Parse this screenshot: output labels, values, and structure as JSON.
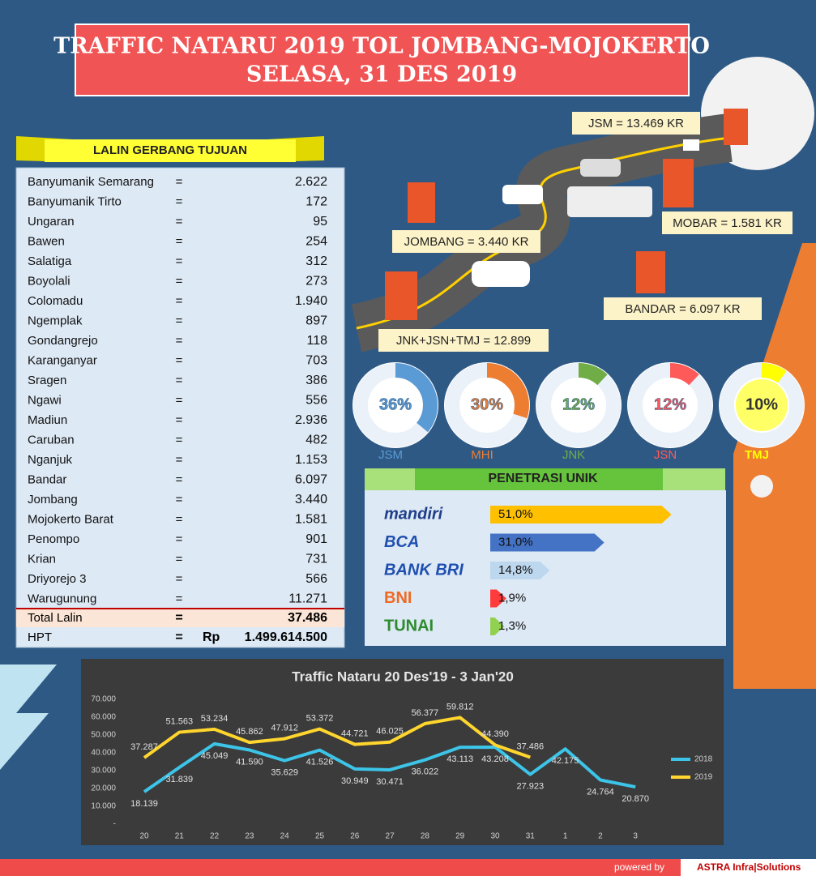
{
  "header": {
    "title_line1": "TRAFFIC NATARU 2019  TOL JOMBANG-MOJOKERTO",
    "title_line2": "SELASA, 31 DES 2019"
  },
  "gerbang": {
    "heading": "LALIN GERBANG TUJUAN",
    "separator": "=",
    "rows": [
      [
        "Banyumanik Semarang",
        "2.622"
      ],
      [
        "Banyumanik Tirto",
        "172"
      ],
      [
        "Ungaran",
        "95"
      ],
      [
        "Bawen",
        "254"
      ],
      [
        "Salatiga",
        "312"
      ],
      [
        "Boyolali",
        "273"
      ],
      [
        "Colomadu",
        "1.940"
      ],
      [
        "Ngemplak",
        "897"
      ],
      [
        "Gondangrejo",
        "118"
      ],
      [
        "Karanganyar",
        "703"
      ],
      [
        "Sragen",
        "386"
      ],
      [
        "Ngawi",
        "556"
      ],
      [
        "Madiun",
        "2.936"
      ],
      [
        "Caruban",
        "482"
      ],
      [
        "Nganjuk",
        "1.153"
      ],
      [
        "Bandar",
        "6.097"
      ],
      [
        "Jombang",
        "3.440"
      ],
      [
        "Mojokerto Barat",
        "1.581"
      ],
      [
        "Penompo",
        "901"
      ],
      [
        "Krian",
        "731"
      ],
      [
        "Driyorejo 3",
        "566"
      ],
      [
        "Warugunung",
        "11.271"
      ]
    ],
    "total": [
      "Total Lalin",
      "37.486"
    ],
    "hpt": [
      "HPT",
      "Rp",
      "1.499.614.500"
    ]
  },
  "road_labels": [
    "JSM = 13.469 KR",
    "MOBAR = 1.581 KR",
    "JOMBANG = 3.440 KR",
    "BANDAR = 6.097 KR",
    "JNK+JSN+TMJ = 12.899"
  ],
  "donuts": [
    {
      "name": "JSM",
      "value": 36,
      "value_label": "36%",
      "color": "#5b9bd5"
    },
    {
      "name": "MHI",
      "value": 30,
      "value_label": "30%",
      "color": "#ed7d31"
    },
    {
      "name": "JNK",
      "value": 12,
      "value_label": "12%",
      "color": "#70ad47"
    },
    {
      "name": "JSN",
      "value": 12,
      "value_label": "12%",
      "color": "#ff5a5a"
    },
    {
      "name": "TMJ",
      "value": 10,
      "value_label": "10%",
      "color": "#ffff00"
    }
  ],
  "penetrasi": {
    "heading": "PENETRASI UNIK",
    "items": [
      {
        "name": "mandiri",
        "value": 51.0,
        "value_label": "51,0%",
        "color": "#ffc000"
      },
      {
        "name": "BCA",
        "value": 31.0,
        "value_label": "31,0%",
        "color": "#4472c4"
      },
      {
        "name": "BANK BRI",
        "value": 14.8,
        "value_label": "14,8%",
        "color": "#bdd7ee"
      },
      {
        "name": "BNI",
        "value": 1.9,
        "value_label": "1,9%",
        "color": "#ff3b3b"
      },
      {
        "name": "TUNAI",
        "value": 1.3,
        "value_label": "1,3%",
        "color": "#92d050"
      }
    ]
  },
  "chart_data": {
    "type": "line",
    "title": "Traffic  Nataru  20 Des'19 - 3 Jan'20",
    "categories": [
      "20",
      "21",
      "22",
      "23",
      "24",
      "25",
      "26",
      "27",
      "28",
      "29",
      "30",
      "31",
      "1",
      "2",
      "3"
    ],
    "series": [
      {
        "name": "2018",
        "color": "#3cc5e8",
        "values": [
          18139,
          31839,
          45049,
          41590,
          35629,
          41526,
          30949,
          30471,
          36022,
          43113,
          43208,
          27923,
          42175,
          24764,
          20870
        ],
        "value_labels": [
          "18.139",
          "31.839",
          "45.049",
          "41.590",
          "35.629",
          "41.526",
          "30.949",
          "30.471",
          "36.022",
          "43.113",
          "43.208",
          "27.923",
          "42.175",
          "24.764",
          "20.870"
        ]
      },
      {
        "name": "2019",
        "color": "#ffd52e",
        "values": [
          37287,
          51563,
          53234,
          45862,
          47912,
          53372,
          44721,
          46025,
          56377,
          59812,
          44390,
          37486,
          null,
          null,
          null
        ],
        "value_labels": [
          "37.287",
          "51.563",
          "53.234",
          "45.862",
          "47.912",
          "53.372",
          "44.721",
          "46.025",
          "56.377",
          "59.812",
          "44.390",
          "37.486",
          null,
          null,
          null
        ]
      }
    ],
    "ylim": [
      0,
      70000
    ],
    "yticks": [
      {
        "value": 0,
        "label": "-"
      },
      {
        "value": 10000,
        "label": "10.000"
      },
      {
        "value": 20000,
        "label": "20.000"
      },
      {
        "value": 30000,
        "label": "30.000"
      },
      {
        "value": 40000,
        "label": "40.000"
      },
      {
        "value": 50000,
        "label": "50.000"
      },
      {
        "value": 60000,
        "label": "60.000"
      },
      {
        "value": 70000,
        "label": "70.000"
      }
    ],
    "legend": "right"
  },
  "footer": {
    "powered": "powered by",
    "brand": "ASTRA Infra|Solutions"
  }
}
